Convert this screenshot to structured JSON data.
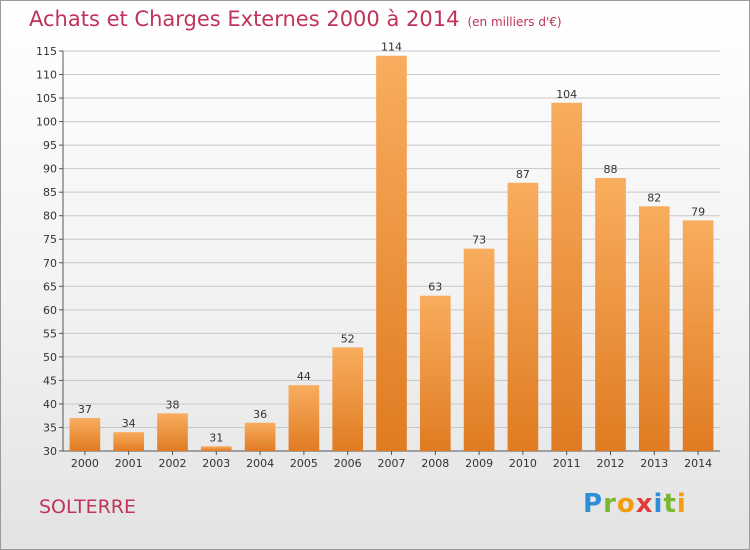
{
  "title": "Achats et Charges Externes 2000 à 2014",
  "unit_label": "(en milliers d'€)",
  "location": "SOLTERRE",
  "logo": {
    "letters": [
      "P",
      "r",
      "o",
      "x",
      "i",
      "t",
      "i"
    ],
    "colors": [
      "#2e8fd6",
      "#7cb82f",
      "#f39c12",
      "#e23b3b",
      "#2e8fd6",
      "#7cb82f",
      "#f39c12"
    ]
  },
  "colors": {
    "bar_light": "#f8ad5e",
    "bar_dark": "#e07b22",
    "grid": "#c8c8c8",
    "title": "#c0335a"
  },
  "chart_data": {
    "type": "bar",
    "title": "Achats et Charges Externes 2000 à 2014",
    "categories": [
      "2000",
      "2001",
      "2002",
      "2003",
      "2004",
      "2005",
      "2006",
      "2007",
      "2008",
      "2009",
      "2010",
      "2011",
      "2012",
      "2013",
      "2014"
    ],
    "values": [
      37,
      34,
      38,
      31,
      36,
      44,
      52,
      114,
      63,
      73,
      87,
      104,
      88,
      82,
      79
    ],
    "xlabel": "",
    "ylabel": "",
    "ylim": [
      30,
      115
    ],
    "yticks": [
      30,
      35,
      40,
      45,
      50,
      55,
      60,
      65,
      70,
      75,
      80,
      85,
      90,
      95,
      100,
      105,
      110,
      115
    ],
    "grid": true,
    "legend": "none"
  }
}
